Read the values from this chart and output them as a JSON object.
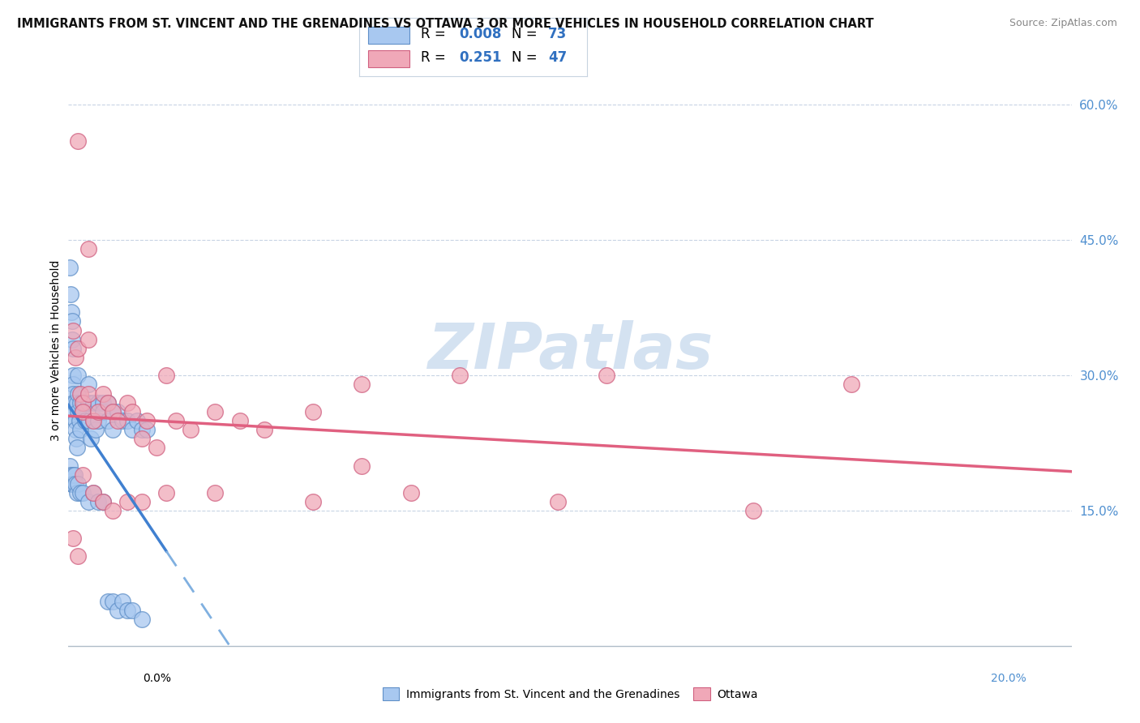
{
  "title": "IMMIGRANTS FROM ST. VINCENT AND THE GRENADINES VS OTTAWA 3 OR MORE VEHICLES IN HOUSEHOLD CORRELATION CHART",
  "source": "Source: ZipAtlas.com",
  "ylabel": "3 or more Vehicles in Household",
  "right_yticklabels": [
    "15.0%",
    "30.0%",
    "45.0%",
    "60.0%"
  ],
  "right_yticks": [
    0.15,
    0.3,
    0.45,
    0.6
  ],
  "legend_blue_R": "0.008",
  "legend_blue_N": "73",
  "legend_pink_R": "0.251",
  "legend_pink_N": "47",
  "blue_color": "#a8c8f0",
  "blue_edge_color": "#6090c8",
  "pink_color": "#f0a8b8",
  "pink_edge_color": "#d06080",
  "trend_blue_solid_color": "#4080d0",
  "trend_blue_dash_color": "#80b0e0",
  "trend_pink_color": "#e06080",
  "watermark": "ZIPatlas",
  "watermark_color": "#d0dff0",
  "xlim": [
    0.0,
    0.205
  ],
  "ylim": [
    -0.005,
    0.66
  ],
  "xticks": [
    0.0,
    0.025,
    0.05,
    0.075,
    0.1,
    0.125,
    0.15,
    0.175,
    0.2
  ],
  "background_color": "#ffffff",
  "grid_color": "#c8d4e4",
  "blue_x": [
    0.0003,
    0.0005,
    0.0006,
    0.0007,
    0.0008,
    0.0009,
    0.001,
    0.001,
    0.001,
    0.001,
    0.0012,
    0.0013,
    0.0014,
    0.0015,
    0.0015,
    0.0016,
    0.0017,
    0.0018,
    0.002,
    0.002,
    0.002,
    0.0022,
    0.0024,
    0.0025,
    0.003,
    0.003,
    0.0032,
    0.0035,
    0.004,
    0.004,
    0.0042,
    0.0045,
    0.005,
    0.005,
    0.0055,
    0.006,
    0.006,
    0.007,
    0.007,
    0.008,
    0.008,
    0.009,
    0.009,
    0.01,
    0.011,
    0.012,
    0.013,
    0.014,
    0.015,
    0.016,
    0.0003,
    0.0004,
    0.0006,
    0.0008,
    0.001,
    0.001,
    0.0012,
    0.0015,
    0.0018,
    0.002,
    0.0025,
    0.003,
    0.004,
    0.005,
    0.006,
    0.007,
    0.008,
    0.009,
    0.01,
    0.011,
    0.012,
    0.013,
    0.015
  ],
  "blue_y": [
    0.42,
    0.39,
    0.37,
    0.36,
    0.34,
    0.33,
    0.3,
    0.29,
    0.28,
    0.27,
    0.26,
    0.27,
    0.25,
    0.25,
    0.24,
    0.23,
    0.27,
    0.22,
    0.3,
    0.28,
    0.26,
    0.25,
    0.27,
    0.24,
    0.27,
    0.26,
    0.27,
    0.25,
    0.29,
    0.27,
    0.25,
    0.23,
    0.27,
    0.25,
    0.24,
    0.27,
    0.25,
    0.27,
    0.26,
    0.27,
    0.25,
    0.26,
    0.24,
    0.26,
    0.25,
    0.25,
    0.24,
    0.25,
    0.24,
    0.24,
    0.2,
    0.19,
    0.18,
    0.18,
    0.19,
    0.18,
    0.19,
    0.18,
    0.17,
    0.18,
    0.17,
    0.17,
    0.16,
    0.17,
    0.16,
    0.16,
    0.05,
    0.05,
    0.04,
    0.05,
    0.04,
    0.04,
    0.03
  ],
  "pink_x": [
    0.001,
    0.0015,
    0.002,
    0.0025,
    0.003,
    0.003,
    0.004,
    0.004,
    0.005,
    0.006,
    0.007,
    0.008,
    0.009,
    0.01,
    0.012,
    0.013,
    0.015,
    0.016,
    0.018,
    0.02,
    0.022,
    0.025,
    0.03,
    0.035,
    0.04,
    0.05,
    0.06,
    0.08,
    0.11,
    0.16,
    0.001,
    0.002,
    0.003,
    0.005,
    0.007,
    0.009,
    0.012,
    0.015,
    0.02,
    0.03,
    0.05,
    0.07,
    0.1,
    0.14,
    0.002,
    0.004,
    0.06
  ],
  "pink_y": [
    0.35,
    0.32,
    0.33,
    0.28,
    0.27,
    0.26,
    0.34,
    0.28,
    0.25,
    0.26,
    0.28,
    0.27,
    0.26,
    0.25,
    0.27,
    0.26,
    0.23,
    0.25,
    0.22,
    0.3,
    0.25,
    0.24,
    0.26,
    0.25,
    0.24,
    0.26,
    0.29,
    0.3,
    0.3,
    0.29,
    0.12,
    0.1,
    0.19,
    0.17,
    0.16,
    0.15,
    0.16,
    0.16,
    0.17,
    0.17,
    0.16,
    0.17,
    0.16,
    0.15,
    0.56,
    0.44,
    0.2
  ],
  "trend_blue_x_solid_end": 0.02,
  "trend_blue_x_dash_start": 0.02,
  "trend_blue_x_end": 0.205,
  "trend_pink_x_start": 0.0,
  "trend_pink_x_end": 0.205
}
